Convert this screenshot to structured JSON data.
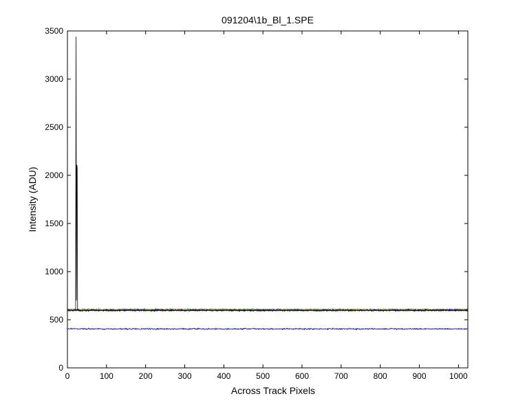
{
  "chart_data": {
    "type": "line",
    "title": "091204\\1b_Bl_1.SPE",
    "xlabel": "Across Track Pixels",
    "ylabel": "Intensity (ADU)",
    "xlim": [
      0,
      1024
    ],
    "ylim": [
      0,
      3500
    ],
    "xticks": [
      0,
      100,
      200,
      300,
      400,
      500,
      600,
      700,
      800,
      900,
      1000
    ],
    "yticks": [
      0,
      500,
      1000,
      1500,
      2000,
      2500,
      3000,
      3500
    ],
    "grid": false,
    "legend": "none",
    "series": [
      {
        "color": "#000000",
        "baseline": 598,
        "noise": 8,
        "peaks": [
          {
            "x": 22,
            "y": 3440
          },
          {
            "x": 24,
            "y": 2110
          },
          {
            "x": 25,
            "y": 2080
          },
          {
            "x": 23,
            "y": 700
          }
        ]
      },
      {
        "color": "#00bfbf",
        "baseline": 606,
        "noise": 9
      },
      {
        "color": "#bf00bf",
        "baseline": 602,
        "noise": 8
      },
      {
        "color": "#ff0000",
        "baseline": 600,
        "noise": 8
      },
      {
        "color": "#008000",
        "baseline": 603,
        "noise": 8
      },
      {
        "color": "#bfbf00",
        "baseline": 604,
        "noise": 8
      },
      {
        "color": "#0000ff",
        "baseline": 597,
        "noise": 7
      },
      {
        "color": "#00008b",
        "baseline": 405,
        "noise": 6
      }
    ]
  }
}
